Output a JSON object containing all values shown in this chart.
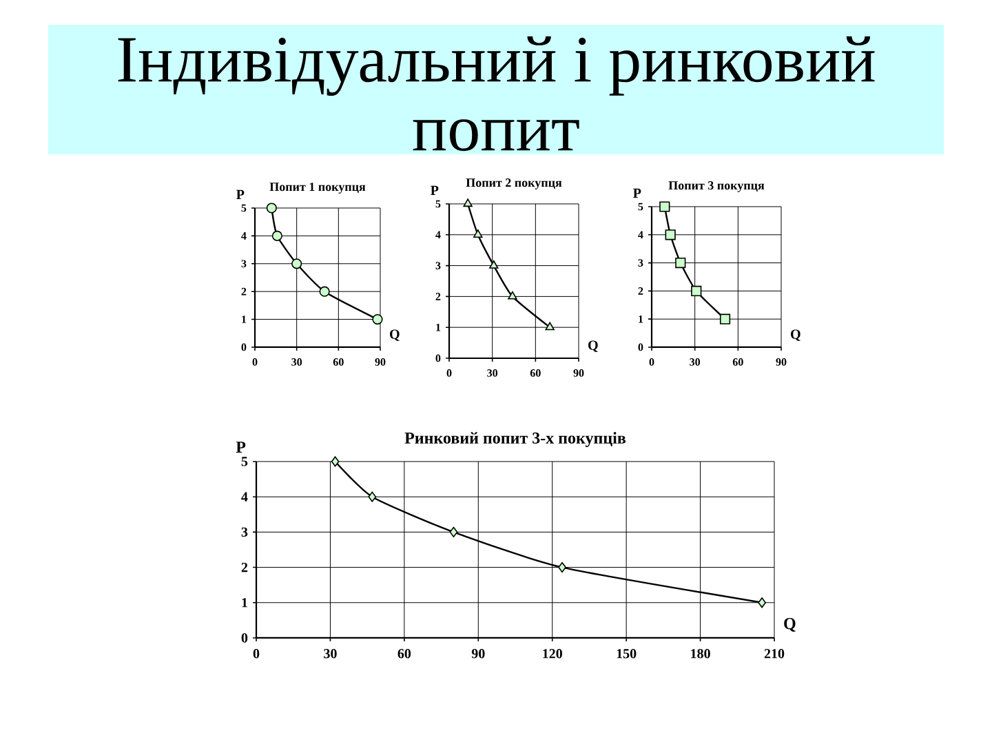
{
  "chart_data": [
    {
      "type": "line",
      "title": "Попит 1 покупця",
      "xlabel": "Q",
      "ylabel": "P",
      "x": [
        12,
        16,
        30,
        50,
        88
      ],
      "series": [
        {
          "color": "#000000",
          "colors": [
            "#ccffcc",
            "#ccffcc",
            "#ccffcc",
            "#ccffcc",
            "#ccffcc"
          ],
          "values": [
            5,
            4,
            3,
            2,
            1
          ]
        }
      ],
      "xlim": [
        0,
        90
      ],
      "ylim": [
        0,
        5
      ],
      "xticks": [
        0,
        30,
        60,
        90
      ],
      "yticks": [
        0,
        1,
        2,
        3,
        4,
        5
      ],
      "grid": true,
      "marker": "circle",
      "annotations": [
        "Індивідуальний і ринковий попит"
      ]
    },
    {
      "type": "line",
      "title": "Попит 2 покупця",
      "xlabel": "Q",
      "ylabel": "P",
      "x": [
        13,
        20,
        31,
        44,
        70
      ],
      "series": [
        {
          "color": "#000000",
          "colors": [
            "#ccffcc",
            "#ccffcc",
            "#ccffcc",
            "#ccffcc",
            "#ccffcc"
          ],
          "values": [
            5,
            4,
            3,
            2,
            1
          ]
        }
      ],
      "xlim": [
        0,
        90
      ],
      "ylim": [
        0,
        5
      ],
      "xticks": [
        0,
        30,
        60,
        90
      ],
      "yticks": [
        0,
        1,
        2,
        3,
        4,
        5
      ],
      "grid": true,
      "marker": "triangle"
    },
    {
      "type": "line",
      "title": "Попит 3 покупця",
      "xlabel": "Q",
      "ylabel": "P",
      "x": [
        9,
        13,
        20,
        31,
        51
      ],
      "series": [
        {
          "color": "#000000",
          "colors": [
            "#ccffcc",
            "#ccffcc",
            "#ccffcc",
            "#ccffcc",
            "#ccffcc"
          ],
          "values": [
            5,
            4,
            3,
            2,
            1
          ]
        }
      ],
      "xlim": [
        0,
        90
      ],
      "ylim": [
        0,
        5
      ],
      "xticks": [
        0,
        30,
        60,
        90
      ],
      "yticks": [
        0,
        1,
        2,
        3,
        4,
        5
      ],
      "grid": true,
      "marker": "square"
    },
    {
      "type": "line",
      "title": "Ринковий попит 3-х покупців",
      "xlabel": "Q",
      "ylabel": "P",
      "x": [
        32,
        47,
        80,
        124,
        205
      ],
      "series": [
        {
          "color": "#000000",
          "colors": [
            "#ccffcc",
            "#ccffcc",
            "#ccffcc",
            "#ccffcc",
            "#ccffcc"
          ],
          "values": [
            5,
            4,
            3,
            2,
            1
          ]
        }
      ],
      "xlim": [
        0,
        210
      ],
      "ylim": [
        0,
        5
      ],
      "xticks": [
        0,
        30,
        60,
        90,
        120,
        150,
        180,
        210
      ],
      "yticks": [
        0,
        1,
        2,
        3,
        4,
        5
      ],
      "grid": true,
      "marker": "diamond"
    }
  ]
}
